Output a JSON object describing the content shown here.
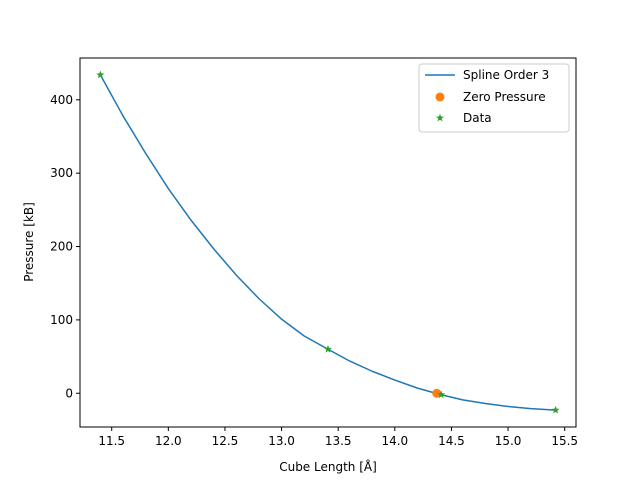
{
  "chart_data": {
    "type": "line",
    "title": "",
    "xlabel": "Cube Length [Å]",
    "ylabel": "Pressure [kB]",
    "xlim": [
      11.22,
      15.6
    ],
    "ylim": [
      -46,
      457
    ],
    "xticks": [
      11.5,
      12.0,
      12.5,
      13.0,
      13.5,
      14.0,
      14.5,
      15.0,
      15.5
    ],
    "xtick_labels": [
      "11.5",
      "12.0",
      "12.5",
      "13.0",
      "13.5",
      "14.0",
      "14.5",
      "15.0",
      "15.5"
    ],
    "yticks": [
      0,
      100,
      200,
      300,
      400
    ],
    "ytick_labels": [
      "0",
      "100",
      "200",
      "300",
      "400"
    ],
    "grid": false,
    "legend_position": "top-right",
    "series": [
      {
        "name": "Spline Order 3",
        "kind": "line",
        "color": "#1f77b4",
        "x": [
          11.4,
          11.6,
          11.8,
          12.0,
          12.2,
          12.4,
          12.6,
          12.8,
          13.0,
          13.2,
          13.41,
          13.6,
          13.8,
          14.0,
          14.2,
          14.41,
          14.6,
          14.8,
          15.0,
          15.2,
          15.42
        ],
        "y": [
          434,
          378,
          327,
          279,
          236,
          197,
          161,
          129,
          101,
          78,
          60,
          44,
          30,
          18,
          7,
          -2,
          -9,
          -14,
          -18,
          -21,
          -23
        ]
      },
      {
        "name": "Zero Pressure",
        "kind": "marker-circle",
        "color": "#ff7f0e",
        "x": [
          14.37
        ],
        "y": [
          0
        ]
      },
      {
        "name": "Data",
        "kind": "marker-star",
        "color": "#2ca02c",
        "x": [
          11.4,
          13.41,
          14.41,
          15.42
        ],
        "y": [
          434,
          60,
          -2,
          -23
        ]
      }
    ]
  }
}
